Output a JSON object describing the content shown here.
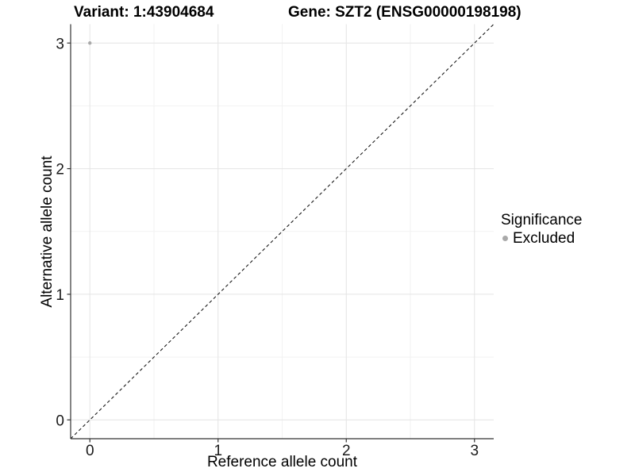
{
  "chart_data": {
    "type": "scatter",
    "title_left": "Variant: 1:43904684",
    "title_right": "Gene: SZT2 (ENSG00000198198)",
    "xlabel": "Reference allele count",
    "ylabel": "Alternative allele count",
    "xlim": [
      -0.15,
      3.15
    ],
    "ylim": [
      -0.15,
      3.15
    ],
    "x_ticks": [
      0,
      1,
      2,
      3
    ],
    "x_tick_labels": [
      "0",
      "1",
      "2",
      "3"
    ],
    "y_ticks": [
      0,
      1,
      2,
      3
    ],
    "y_tick_labels": [
      "0",
      "1",
      "2",
      "3"
    ],
    "x_minor_gridlines": [
      0.5,
      1.5,
      2.5
    ],
    "y_minor_gridlines": [
      0.5,
      1.5,
      2.5
    ],
    "grid": true,
    "legend": {
      "title": "Significance",
      "position": "right-center",
      "entries": [
        {
          "label": "Excluded",
          "color": "#a9a9a9"
        }
      ]
    },
    "series": [
      {
        "name": "Excluded",
        "color": "#a9a9a9",
        "points": [
          {
            "x": 0,
            "y": 3
          }
        ]
      }
    ],
    "reference_line": {
      "type": "identity y=x",
      "style": "dashed",
      "color": "#1a1a1a"
    },
    "colors": {
      "background": "#ffffff",
      "grid_major": "#e4e4e4",
      "grid_minor": "#f2f2f2",
      "axis": "#333333",
      "text": "#000000"
    }
  }
}
